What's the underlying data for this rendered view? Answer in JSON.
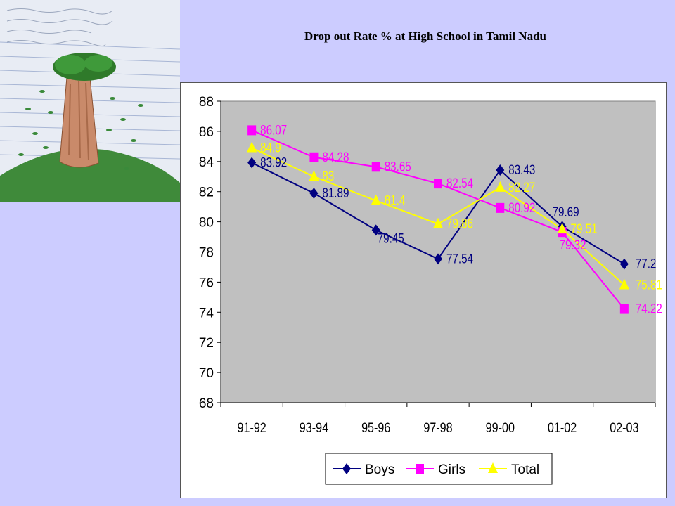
{
  "title": "Drop out Rate % at  High  School in Tamil Nadu",
  "image": {
    "description_icon": "tree-drawing-icon"
  },
  "chart_data": {
    "type": "line",
    "categories": [
      "91-92",
      "93-94",
      "95-96",
      "97-98",
      "99-00",
      "01-02",
      "02-03"
    ],
    "series": [
      {
        "name": "Boys",
        "color": "#000080",
        "marker": "diamond",
        "values": [
          83.92,
          81.89,
          79.45,
          77.54,
          83.43,
          79.69,
          77.2
        ],
        "labels": [
          "83.92",
          "81.89",
          "79.45",
          "77.54",
          "83.43",
          "79.69",
          "77.2"
        ]
      },
      {
        "name": "Girls",
        "color": "#ff00ff",
        "marker": "square",
        "values": [
          86.07,
          84.28,
          83.65,
          82.54,
          80.92,
          79.32,
          74.22
        ],
        "labels": [
          "86.07",
          "84.28",
          "83.65",
          "82.54",
          "80.92",
          "79.32",
          "74.22"
        ]
      },
      {
        "name": "Total",
        "color": "#ffff00",
        "marker": "triangle",
        "values": [
          84.9,
          83,
          81.4,
          79.86,
          82.27,
          79.51,
          75.81
        ],
        "labels": [
          "84.9",
          "83",
          "81.4",
          "79.86",
          "82.27",
          "79.51",
          "75.81"
        ]
      }
    ],
    "ylim": [
      68,
      88
    ],
    "yticks": [
      "68",
      "70",
      "72",
      "74",
      "76",
      "78",
      "80",
      "82",
      "84",
      "86",
      "88"
    ],
    "plot_background": "#c0c0c0",
    "legend_position": "bottom",
    "grid": false
  }
}
